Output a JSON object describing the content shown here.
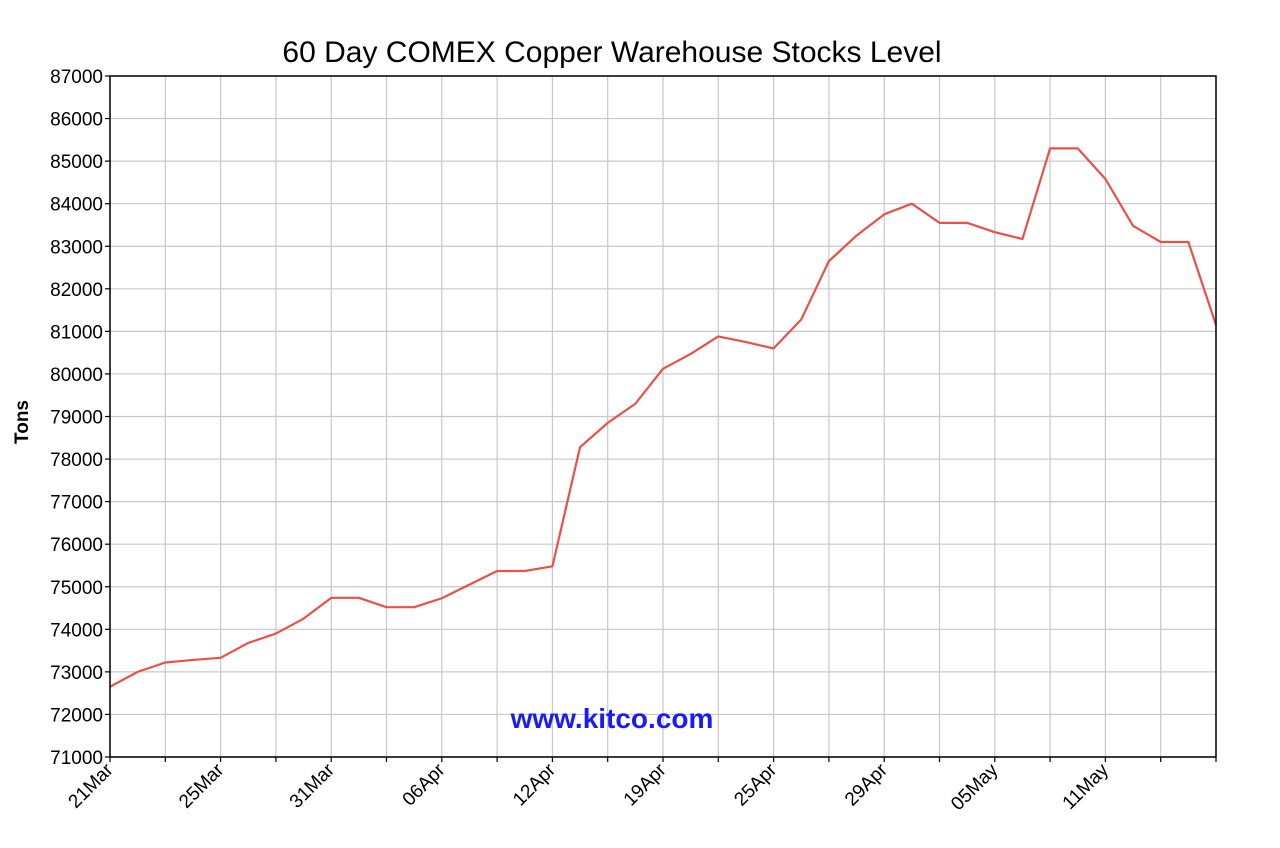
{
  "chart_data": {
    "type": "line",
    "title": "60 Day COMEX Copper Warehouse Stocks Level",
    "xlabel": "",
    "ylabel": "Tons",
    "ylim": [
      71000,
      87000
    ],
    "y_ticks": [
      71000,
      72000,
      73000,
      74000,
      75000,
      76000,
      77000,
      78000,
      79000,
      80000,
      81000,
      82000,
      83000,
      84000,
      85000,
      86000,
      87000
    ],
    "x_tick_labels": [
      "21Mar",
      "25Mar",
      "31Mar",
      "06Apr",
      "12Apr",
      "19Apr",
      "25Apr",
      "29Apr",
      "05May",
      "11May"
    ],
    "x_tick_positions": [
      0,
      4,
      8,
      12,
      16,
      20,
      24,
      28,
      32,
      36
    ],
    "x_count": 41,
    "grid": true,
    "legend": "none",
    "watermark": "www.kitco.com",
    "colors": {
      "line": "#e8514a",
      "grid": "#c8c8c8",
      "axis": "#000000",
      "watermark": "#1a1aff"
    },
    "series": [
      {
        "values": [
          72650,
          73000,
          73220,
          73280,
          73330,
          73680,
          73900,
          74250,
          74740,
          74740,
          74520,
          74520,
          74730,
          75050,
          75370,
          75370,
          75480,
          78280,
          78850,
          79300,
          80120,
          80470,
          80880,
          80750,
          80600,
          81280,
          82650,
          83250,
          83750,
          84000,
          83550,
          83550,
          83330,
          83170,
          85300,
          85300,
          84580,
          83480,
          83100,
          83100,
          81150
        ]
      }
    ]
  }
}
